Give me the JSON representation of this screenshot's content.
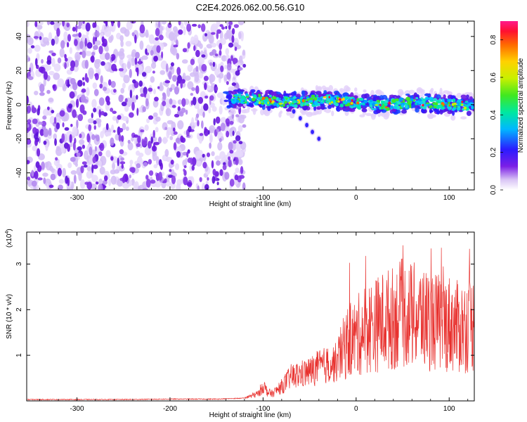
{
  "title": "C2E4.2026.062.00.56.G10",
  "chart_data": [
    {
      "type": "heatmap",
      "xlabel": "Height of straight line (km)",
      "ylabel": "Frequency (Hz)",
      "xlim": [
        -354,
        127
      ],
      "ylim": [
        -50,
        49
      ],
      "xticks": [
        -300,
        -200,
        -100,
        0,
        100
      ],
      "yticks": [
        -40,
        -20,
        0,
        20,
        40
      ],
      "noise_region_x": [
        -354,
        -120
      ],
      "signal_region_x": [
        -140,
        127
      ],
      "signal_center_freq": 1.5,
      "signal_half_width_hz": 5,
      "echo_trail": [
        [
          -67,
          -4
        ],
        [
          -60,
          -8
        ],
        [
          -53,
          -12
        ],
        [
          -47,
          -16
        ],
        [
          -40,
          -20
        ]
      ],
      "colorbar": {
        "label": "Normalized spectral amplitude",
        "range": [
          0.0,
          0.9
        ],
        "ticks": [
          "0.0",
          "0.2",
          "0.4",
          "0.6",
          "0.8"
        ]
      }
    },
    {
      "type": "line",
      "xlabel": "Height of straight line (km)",
      "ylabel": "SNR (10 * v/v)",
      "scale_label": "(x10",
      "scale_exp": "4",
      "scale_close": ")",
      "xlim": [
        -354,
        127
      ],
      "ylim": [
        0,
        3.7
      ],
      "xticks": [
        -300,
        -200,
        -100,
        0,
        100
      ],
      "yticks": [
        1,
        2,
        3
      ],
      "color": "#e8312e",
      "series": [
        {
          "name": "SNR",
          "x": [
            -354,
            -300,
            -250,
            -200,
            -150,
            -120,
            -105,
            -100,
            -95,
            -90,
            -80,
            -70,
            -60,
            -50,
            -40,
            -30,
            -20,
            -15,
            -10,
            0,
            10,
            20,
            25,
            30,
            40,
            50,
            60,
            70,
            80,
            90,
            100,
            110,
            120,
            127
          ],
          "y": [
            0.03,
            0.03,
            0.03,
            0.04,
            0.04,
            0.06,
            0.15,
            0.32,
            0.18,
            0.15,
            0.3,
            0.5,
            0.55,
            0.6,
            0.7,
            0.75,
            0.8,
            1.0,
            1.2,
            1.3,
            1.5,
            1.55,
            1.6,
            1.65,
            1.7,
            1.8,
            1.75,
            1.7,
            1.65,
            1.6,
            1.6,
            1.5,
            1.55,
            1.6
          ]
        }
      ]
    }
  ]
}
